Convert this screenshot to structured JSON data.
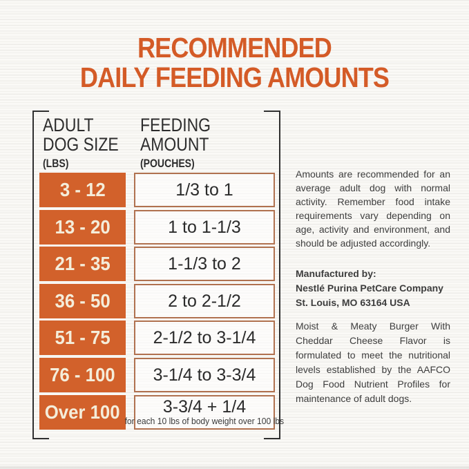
{
  "title": {
    "line1": "RECOMMENDED",
    "line2": "DAILY FEEDING AMOUNTS"
  },
  "table": {
    "col1_header": {
      "line1": "ADULT",
      "line2": "DOG SIZE",
      "unit": "(LBS)"
    },
    "col2_header": {
      "line1": "FEEDING",
      "line2": "AMOUNT",
      "unit": "(POUCHES)"
    },
    "rows": [
      {
        "size": "3 - 12",
        "amount": "1/3 to 1"
      },
      {
        "size": "13 - 20",
        "amount": "1 to 1-1/3"
      },
      {
        "size": "21 - 35",
        "amount": "1-1/3 to 2"
      },
      {
        "size": "36 - 50",
        "amount": "2 to 2-1/2"
      },
      {
        "size": "51 - 75",
        "amount": "2-1/2 to 3-1/4"
      },
      {
        "size": "76 - 100",
        "amount": "3-1/4 to 3-3/4"
      },
      {
        "size": "Over 100",
        "amount": "3-3/4 + 1/4",
        "amount_note": "for each 10 lbs of body weight over 100 lbs"
      }
    ]
  },
  "notes": {
    "general": "Amounts are recommended for an average adult dog with normal activity. Remember food intake requirements vary depending on age, activity and environment, and should be adjusted accordingly.",
    "manufactured": {
      "line1": "Manufactured by:",
      "line2": "Nestlé Purina PetCare Company",
      "line3": "St. Louis, MO 63164 USA"
    },
    "formulated": "Moist & Meaty Burger With Cheddar Cheese Flavor is formulated to meet the nutritional levels established by the AAFCO Dog Food Nutrient Profiles for maintenance of adult dogs."
  },
  "colors": {
    "accent_orange": "#d2612b",
    "title_orange": "#d45b27",
    "cream_text": "#f4edda",
    "body_text": "#3d3d3d",
    "frame_black": "#2f2f2f",
    "cell_border_orange": "#b0714f",
    "background": "#faf9f6"
  }
}
